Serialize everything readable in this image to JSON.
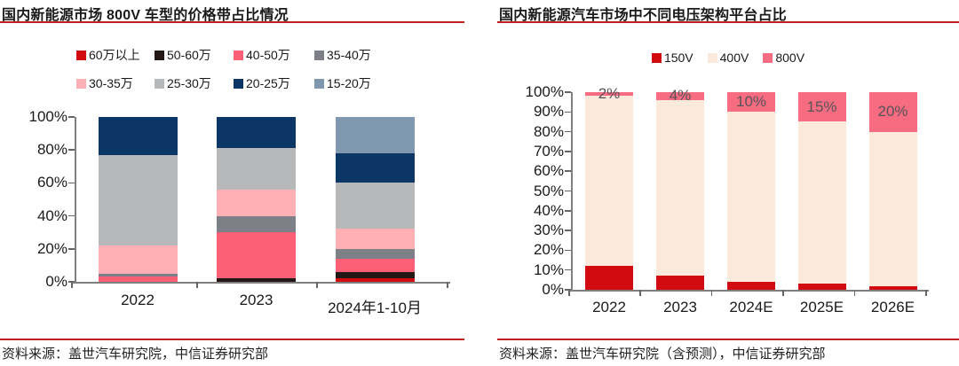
{
  "panels": [
    {
      "title": "国内新能源市场 800V 车型的价格带占比情况",
      "source": "资料来源：盖世汽车研究院，中信证券研究部",
      "accent_color": "#c02222"
    },
    {
      "title": "国内新能源汽车市场中不同电压架构平台占比",
      "source": "资料来源：盖世汽车研究院（含预测），中信证券研究部",
      "accent_color": "#c02222"
    }
  ],
  "chart_data": [
    {
      "type": "bar",
      "stacked": true,
      "title": "国内新能源市场 800V 车型的价格带占比情况",
      "categories": [
        "2022",
        "2023",
        "2024年1-10月"
      ],
      "series": [
        {
          "name": "60万以上",
          "color": "#d20b10",
          "values": [
            0,
            0,
            2
          ]
        },
        {
          "name": "50-60万",
          "color": "#231815",
          "values": [
            0,
            2,
            4
          ]
        },
        {
          "name": "40-50万",
          "color": "#fc6077",
          "values": [
            3,
            28,
            8
          ]
        },
        {
          "name": "35-40万",
          "color": "#7d8086",
          "values": [
            2,
            10,
            6
          ]
        },
        {
          "name": "30-35万",
          "color": "#feb0b4",
          "values": [
            17,
            16,
            12
          ]
        },
        {
          "name": "25-30万",
          "color": "#b7b8ba",
          "values": [
            55,
            25,
            28
          ]
        },
        {
          "name": "20-25万",
          "color": "#0c3665",
          "values": [
            23,
            19,
            18
          ]
        },
        {
          "name": "15-20万",
          "color": "#7f97af",
          "values": [
            0,
            0,
            22
          ]
        }
      ],
      "ylim": [
        0,
        100
      ],
      "ytick_labels": [
        "100%",
        "80%",
        "60%",
        "40%",
        "20%",
        "0%"
      ],
      "legend_position": "top",
      "legend_rows": 2,
      "grid": false
    },
    {
      "type": "bar",
      "stacked": true,
      "title": "国内新能源汽车市场中不同电压架构平台占比",
      "categories": [
        "2022",
        "2023",
        "2024E",
        "2025E",
        "2026E"
      ],
      "series": [
        {
          "name": "150V",
          "color": "#d20b10",
          "values": [
            12,
            7,
            4,
            3,
            2
          ]
        },
        {
          "name": "400V",
          "color": "#fbeadb",
          "values": [
            86,
            89,
            86,
            82,
            78
          ]
        },
        {
          "name": "800V",
          "color": "#f86c81",
          "values": [
            2,
            4,
            10,
            15,
            20
          ],
          "data_labels": [
            "2%",
            "4%",
            "10%",
            "15%",
            "20%"
          ],
          "data_label_color": "#56535a"
        }
      ],
      "ylim": [
        0,
        100
      ],
      "ytick_labels": [
        "100%",
        "90%",
        "80%",
        "70%",
        "60%",
        "50%",
        "40%",
        "30%",
        "20%",
        "10%",
        "0%"
      ],
      "legend_position": "top",
      "legend_rows": 1,
      "grid": false
    }
  ]
}
